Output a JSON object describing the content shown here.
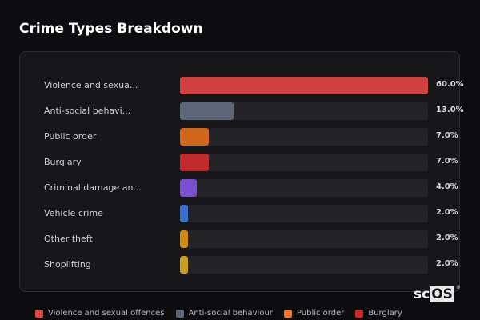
{
  "title": "Crime Types Breakdown",
  "rows": [
    {
      "label": "Violence and sexua...",
      "percent_label": "60.0%",
      "value": 60.0,
      "color": "#d04040"
    },
    {
      "label": "Anti-social behavi...",
      "percent_label": "13.0%",
      "value": 13.0,
      "color": "#5c6678"
    },
    {
      "label": "Public order",
      "percent_label": "7.0%",
      "value": 7.0,
      "color": "#d0661c"
    },
    {
      "label": "Burglary",
      "percent_label": "7.0%",
      "value": 7.0,
      "color": "#c02a2a"
    },
    {
      "label": "Criminal damage an...",
      "percent_label": "4.0%",
      "value": 4.0,
      "color": "#7b4fd4"
    },
    {
      "label": "Vehicle crime",
      "percent_label": "2.0%",
      "value": 2.0,
      "color": "#3a6fd0"
    },
    {
      "label": "Other theft",
      "percent_label": "2.0%",
      "value": 2.0,
      "color": "#d08a10"
    },
    {
      "label": "Shoplifting",
      "percent_label": "2.0%",
      "value": 2.0,
      "color": "#c8a020"
    }
  ],
  "legend": [
    {
      "label": "Violence and sexual offences",
      "color": "#e04848"
    },
    {
      "label": "Anti-social behaviour",
      "color": "#5c6678"
    },
    {
      "label": "Public order",
      "color": "#f07820"
    },
    {
      "label": "Burglary",
      "color": "#d02828"
    }
  ],
  "logo": {
    "text_a": "sc",
    "text_b": "OS",
    "mark": "®"
  }
}
